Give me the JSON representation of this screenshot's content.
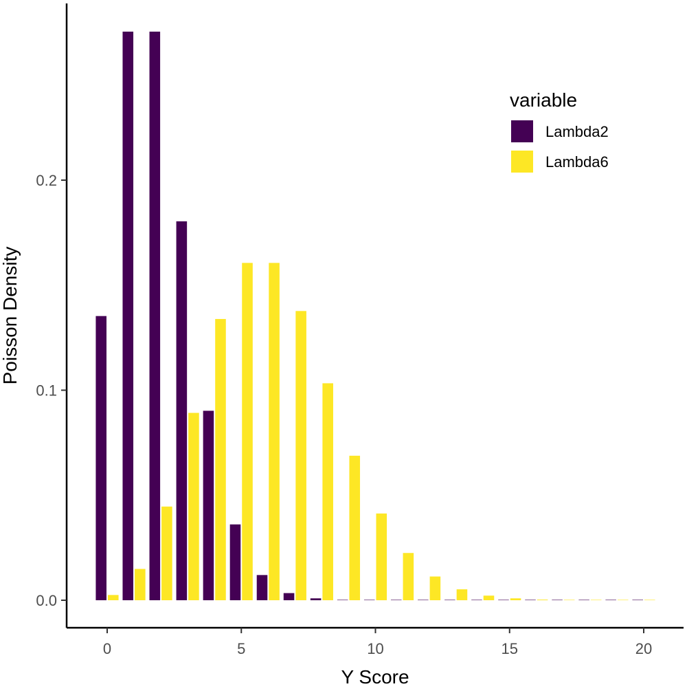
{
  "chart_data": {
    "type": "bar",
    "title": "",
    "xlabel": "Y Score",
    "ylabel": "Poisson Density",
    "xlim": [
      -0.5,
      20.5
    ],
    "ylim": [
      0,
      0.2707
    ],
    "x_ticks": [
      0,
      5,
      10,
      15,
      20
    ],
    "y_ticks": [
      0.0,
      0.1,
      0.2
    ],
    "x_tick_labels": [
      "0",
      "5",
      "10",
      "15",
      "20"
    ],
    "y_tick_labels": [
      "0.0",
      "0.1",
      "0.2"
    ],
    "grid": false,
    "legend": {
      "title": "variable",
      "position": "top-right"
    },
    "x": [
      0,
      1,
      2,
      3,
      4,
      5,
      6,
      7,
      8,
      9,
      10,
      11,
      12,
      13,
      14,
      15,
      16,
      17,
      18,
      19,
      20
    ],
    "series": [
      {
        "name": "Lambda2",
        "color": "#440154",
        "values": [
          0.1353,
          0.2707,
          0.2707,
          0.1804,
          0.0902,
          0.0361,
          0.012,
          0.0034,
          0.0009,
          0.0002,
          0.0,
          0.0,
          0.0,
          0.0,
          0.0,
          0.0,
          0.0,
          0.0,
          0.0,
          0.0,
          0.0
        ]
      },
      {
        "name": "Lambda6",
        "color": "#FDE725",
        "values": [
          0.0025,
          0.0149,
          0.0446,
          0.0892,
          0.1339,
          0.1606,
          0.1606,
          0.1377,
          0.1033,
          0.0688,
          0.0413,
          0.0225,
          0.0113,
          0.0052,
          0.0022,
          0.0009,
          0.0003,
          0.0001,
          0.0,
          0.0,
          0.0
        ]
      }
    ]
  }
}
